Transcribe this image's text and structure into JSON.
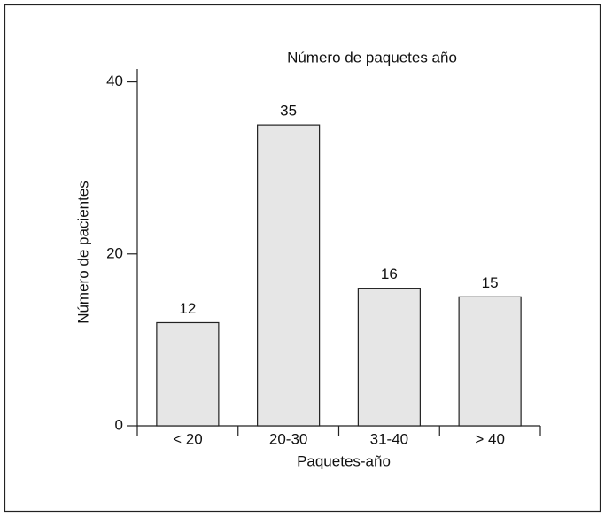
{
  "chart_data": {
    "type": "bar",
    "title": "Número de paquetes año",
    "x_label": "Paquetes-año",
    "y_label": "Número de pacientes",
    "categories": [
      "< 20",
      "20-30",
      "31-40",
      "> 40"
    ],
    "values": [
      12,
      35,
      16,
      15
    ],
    "color": "#e6e6e6",
    "ylim": [
      0,
      41.5
    ],
    "yticks": [
      0,
      20,
      40
    ]
  }
}
